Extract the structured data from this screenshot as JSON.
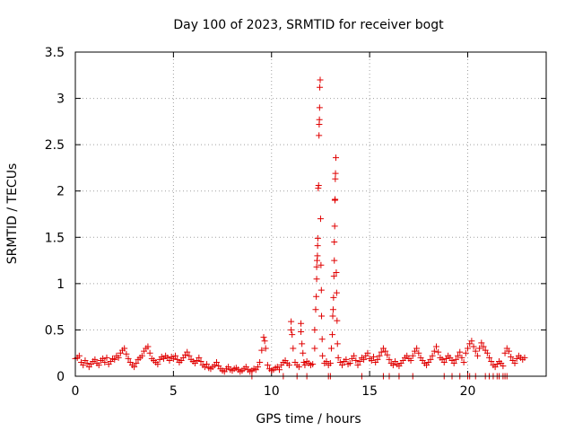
{
  "chart_data": {
    "type": "scatter",
    "title": "Day 100 of 2023, SRMTID for receiver bogt",
    "xlabel": "GPS time / hours",
    "ylabel": "SRMTID / TECUs",
    "xlim": [
      0,
      24
    ],
    "ylim": [
      0,
      3.5
    ],
    "xticks": [
      0,
      5,
      10,
      15,
      20
    ],
    "yticks": [
      0,
      0.5,
      1,
      1.5,
      2,
      2.5,
      3,
      3.5
    ],
    "xtick_labels": [
      "0",
      "5",
      "10",
      "15",
      "20"
    ],
    "ytick_labels": [
      "0",
      "0.5",
      "1",
      "1.5",
      "2",
      "2.5",
      "3",
      "3.5"
    ],
    "grid": true,
    "legend": "none",
    "marker": "+",
    "colors": {
      "marker": "#e00000",
      "grid": "#a0a0a0",
      "axis": "#000000"
    },
    "series": [
      {
        "name": "SRMTID",
        "points": [
          [
            0.0,
            0.19
          ],
          [
            0.1,
            0.2
          ],
          [
            0.2,
            0.22
          ],
          [
            0.3,
            0.15
          ],
          [
            0.4,
            0.12
          ],
          [
            0.5,
            0.17
          ],
          [
            0.6,
            0.14
          ],
          [
            0.7,
            0.1
          ],
          [
            0.8,
            0.13
          ],
          [
            0.9,
            0.16
          ],
          [
            1.0,
            0.18
          ],
          [
            1.1,
            0.14
          ],
          [
            1.2,
            0.12
          ],
          [
            1.3,
            0.17
          ],
          [
            1.4,
            0.19
          ],
          [
            1.5,
            0.15
          ],
          [
            1.6,
            0.2
          ],
          [
            1.7,
            0.13
          ],
          [
            1.8,
            0.16
          ],
          [
            1.9,
            0.19
          ],
          [
            2.0,
            0.18
          ],
          [
            2.1,
            0.22
          ],
          [
            2.2,
            0.2
          ],
          [
            2.3,
            0.25
          ],
          [
            2.4,
            0.28
          ],
          [
            2.5,
            0.3
          ],
          [
            2.6,
            0.24
          ],
          [
            2.7,
            0.19
          ],
          [
            2.8,
            0.15
          ],
          [
            2.9,
            0.12
          ],
          [
            3.0,
            0.1
          ],
          [
            3.1,
            0.14
          ],
          [
            3.2,
            0.18
          ],
          [
            3.3,
            0.2
          ],
          [
            3.4,
            0.22
          ],
          [
            3.5,
            0.27
          ],
          [
            3.6,
            0.3
          ],
          [
            3.7,
            0.32
          ],
          [
            3.8,
            0.25
          ],
          [
            3.9,
            0.19
          ],
          [
            4.0,
            0.17
          ],
          [
            4.1,
            0.15
          ],
          [
            4.2,
            0.13
          ],
          [
            4.3,
            0.18
          ],
          [
            4.4,
            0.21
          ],
          [
            4.5,
            0.19
          ],
          [
            4.6,
            0.22
          ],
          [
            4.7,
            0.2
          ],
          [
            4.8,
            0.17
          ],
          [
            4.9,
            0.21
          ],
          [
            5.0,
            0.19
          ],
          [
            5.1,
            0.22
          ],
          [
            5.2,
            0.18
          ],
          [
            5.3,
            0.15
          ],
          [
            5.4,
            0.17
          ],
          [
            5.5,
            0.2
          ],
          [
            5.6,
            0.23
          ],
          [
            5.7,
            0.26
          ],
          [
            5.8,
            0.22
          ],
          [
            5.9,
            0.18
          ],
          [
            6.0,
            0.16
          ],
          [
            6.1,
            0.14
          ],
          [
            6.2,
            0.17
          ],
          [
            6.3,
            0.2
          ],
          [
            6.4,
            0.16
          ],
          [
            6.5,
            0.12
          ],
          [
            6.6,
            0.1
          ],
          [
            6.7,
            0.13
          ],
          [
            6.8,
            0.09
          ],
          [
            6.9,
            0.08
          ],
          [
            7.0,
            0.1
          ],
          [
            7.1,
            0.12
          ],
          [
            7.2,
            0.15
          ],
          [
            7.3,
            0.11
          ],
          [
            7.4,
            0.08
          ],
          [
            7.5,
            0.06
          ],
          [
            7.6,
            0.05
          ],
          [
            7.7,
            0.08
          ],
          [
            7.8,
            0.1
          ],
          [
            7.9,
            0.07
          ],
          [
            8.0,
            0.06
          ],
          [
            8.1,
            0.08
          ],
          [
            8.2,
            0.09
          ],
          [
            8.3,
            0.07
          ],
          [
            8.4,
            0.05
          ],
          [
            8.5,
            0.06
          ],
          [
            8.6,
            0.08
          ],
          [
            8.7,
            0.1
          ],
          [
            8.8,
            0.07
          ],
          [
            8.9,
            0.05
          ],
          [
            9.0,
            0.06
          ],
          [
            9.1,
            0.08
          ],
          [
            9.2,
            0.07
          ],
          [
            9.3,
            0.1
          ],
          [
            9.4,
            0.15
          ],
          [
            9.5,
            0.28
          ],
          [
            9.6,
            0.42
          ],
          [
            9.65,
            0.38
          ],
          [
            9.7,
            0.3
          ],
          [
            9.8,
            0.12
          ],
          [
            9.9,
            0.08
          ],
          [
            10.0,
            0.06
          ],
          [
            10.1,
            0.07
          ],
          [
            10.2,
            0.09
          ],
          [
            10.3,
            0.1
          ],
          [
            10.4,
            0.07
          ],
          [
            10.5,
            0.12
          ],
          [
            10.6,
            0.15
          ],
          [
            10.7,
            0.17
          ],
          [
            10.8,
            0.14
          ],
          [
            10.9,
            0.12
          ],
          [
            11.0,
            0.5
          ],
          [
            11.0,
            0.59
          ],
          [
            11.05,
            0.45
          ],
          [
            11.1,
            0.3
          ],
          [
            11.2,
            0.15
          ],
          [
            11.3,
            0.12
          ],
          [
            11.4,
            0.1
          ],
          [
            11.5,
            0.57
          ],
          [
            11.5,
            0.48
          ],
          [
            11.55,
            0.35
          ],
          [
            11.6,
            0.25
          ],
          [
            11.65,
            0.15
          ],
          [
            11.7,
            0.12
          ],
          [
            11.8,
            0.16
          ],
          [
            11.9,
            0.14
          ],
          [
            12.0,
            0.12
          ],
          [
            12.1,
            0.13
          ],
          [
            12.2,
            0.3
          ],
          [
            12.2,
            0.5
          ],
          [
            12.25,
            0.72
          ],
          [
            12.28,
            0.86
          ],
          [
            12.3,
            1.05
          ],
          [
            12.3,
            1.18
          ],
          [
            12.32,
            1.25
          ],
          [
            12.34,
            1.3
          ],
          [
            12.35,
            1.41
          ],
          [
            12.36,
            1.49
          ],
          [
            12.38,
            2.03
          ],
          [
            12.4,
            2.06
          ],
          [
            12.42,
            2.6
          ],
          [
            12.43,
            2.72
          ],
          [
            12.44,
            2.77
          ],
          [
            12.45,
            2.9
          ],
          [
            12.46,
            3.12
          ],
          [
            12.48,
            3.2
          ],
          [
            12.5,
            1.7
          ],
          [
            12.52,
            1.2
          ],
          [
            12.54,
            0.93
          ],
          [
            12.55,
            0.65
          ],
          [
            12.58,
            0.4
          ],
          [
            12.6,
            0.22
          ],
          [
            12.7,
            0.14
          ],
          [
            12.8,
            0.16
          ],
          [
            12.9,
            0.12
          ],
          [
            13.0,
            0.14
          ],
          [
            13.05,
            0.3
          ],
          [
            13.1,
            0.45
          ],
          [
            13.12,
            0.65
          ],
          [
            13.14,
            0.72
          ],
          [
            13.16,
            0.85
          ],
          [
            13.18,
            1.08
          ],
          [
            13.2,
            1.25
          ],
          [
            13.2,
            1.45
          ],
          [
            13.22,
            1.62
          ],
          [
            13.23,
            1.9
          ],
          [
            13.24,
            1.91
          ],
          [
            13.25,
            2.13
          ],
          [
            13.26,
            2.19
          ],
          [
            13.28,
            2.36
          ],
          [
            13.3,
            1.12
          ],
          [
            13.32,
            0.9
          ],
          [
            13.34,
            0.6
          ],
          [
            13.36,
            0.35
          ],
          [
            13.4,
            0.2
          ],
          [
            13.5,
            0.15
          ],
          [
            13.6,
            0.12
          ],
          [
            13.7,
            0.16
          ],
          [
            13.8,
            0.18
          ],
          [
            13.9,
            0.13
          ],
          [
            14.0,
            0.14
          ],
          [
            14.1,
            0.19
          ],
          [
            14.2,
            0.22
          ],
          [
            14.3,
            0.17
          ],
          [
            14.4,
            0.12
          ],
          [
            14.5,
            0.16
          ],
          [
            14.6,
            0.2
          ],
          [
            14.7,
            0.18
          ],
          [
            14.8,
            0.22
          ],
          [
            14.9,
            0.25
          ],
          [
            15.0,
            0.19
          ],
          [
            15.1,
            0.17
          ],
          [
            15.2,
            0.21
          ],
          [
            15.3,
            0.15
          ],
          [
            15.4,
            0.18
          ],
          [
            15.5,
            0.22
          ],
          [
            15.6,
            0.26
          ],
          [
            15.7,
            0.3
          ],
          [
            15.8,
            0.27
          ],
          [
            15.9,
            0.23
          ],
          [
            16.0,
            0.18
          ],
          [
            16.1,
            0.14
          ],
          [
            16.2,
            0.12
          ],
          [
            16.3,
            0.16
          ],
          [
            16.4,
            0.13
          ],
          [
            16.5,
            0.11
          ],
          [
            16.6,
            0.14
          ],
          [
            16.7,
            0.17
          ],
          [
            16.8,
            0.2
          ],
          [
            16.9,
            0.22
          ],
          [
            17.0,
            0.19
          ],
          [
            17.1,
            0.17
          ],
          [
            17.2,
            0.22
          ],
          [
            17.3,
            0.27
          ],
          [
            17.4,
            0.3
          ],
          [
            17.5,
            0.25
          ],
          [
            17.6,
            0.2
          ],
          [
            17.7,
            0.17
          ],
          [
            17.8,
            0.14
          ],
          [
            17.9,
            0.12
          ],
          [
            18.0,
            0.15
          ],
          [
            18.1,
            0.18
          ],
          [
            18.2,
            0.22
          ],
          [
            18.3,
            0.27
          ],
          [
            18.4,
            0.32
          ],
          [
            18.5,
            0.26
          ],
          [
            18.6,
            0.2
          ],
          [
            18.7,
            0.18
          ],
          [
            18.8,
            0.15
          ],
          [
            18.9,
            0.19
          ],
          [
            19.0,
            0.22
          ],
          [
            19.1,
            0.2
          ],
          [
            19.2,
            0.17
          ],
          [
            19.3,
            0.14
          ],
          [
            19.4,
            0.18
          ],
          [
            19.5,
            0.22
          ],
          [
            19.6,
            0.26
          ],
          [
            19.7,
            0.2
          ],
          [
            19.8,
            0.15
          ],
          [
            19.9,
            0.25
          ],
          [
            20.0,
            0.3
          ],
          [
            20.1,
            0.35
          ],
          [
            20.2,
            0.38
          ],
          [
            20.3,
            0.32
          ],
          [
            20.4,
            0.27
          ],
          [
            20.5,
            0.22
          ],
          [
            20.6,
            0.3
          ],
          [
            20.7,
            0.36
          ],
          [
            20.8,
            0.32
          ],
          [
            20.9,
            0.28
          ],
          [
            21.0,
            0.25
          ],
          [
            21.1,
            0.2
          ],
          [
            21.2,
            0.16
          ],
          [
            21.3,
            0.12
          ],
          [
            21.4,
            0.1
          ],
          [
            21.5,
            0.13
          ],
          [
            21.6,
            0.16
          ],
          [
            21.7,
            0.14
          ],
          [
            21.8,
            0.11
          ],
          [
            21.9,
            0.25
          ],
          [
            22.0,
            0.3
          ],
          [
            22.1,
            0.27
          ],
          [
            22.2,
            0.21
          ],
          [
            22.3,
            0.17
          ],
          [
            22.4,
            0.14
          ],
          [
            22.5,
            0.19
          ],
          [
            22.6,
            0.22
          ],
          [
            22.7,
            0.2
          ],
          [
            22.8,
            0.18
          ],
          [
            22.9,
            0.2
          ],
          [
            9.0,
            0.0
          ],
          [
            10.6,
            0.0
          ],
          [
            11.3,
            0.0
          ],
          [
            11.8,
            0.0
          ],
          [
            12.9,
            0.0
          ],
          [
            13.0,
            0.0
          ],
          [
            14.6,
            0.0
          ],
          [
            15.7,
            0.0
          ],
          [
            16.0,
            0.0
          ],
          [
            16.5,
            0.0
          ],
          [
            17.2,
            0.0
          ],
          [
            18.8,
            0.0
          ],
          [
            19.2,
            0.0
          ],
          [
            19.6,
            0.0
          ],
          [
            20.0,
            0.0
          ],
          [
            20.1,
            0.0
          ],
          [
            20.4,
            0.0
          ],
          [
            20.9,
            0.0
          ],
          [
            21.1,
            0.0
          ],
          [
            21.3,
            0.0
          ],
          [
            21.5,
            0.0
          ],
          [
            21.6,
            0.0
          ],
          [
            21.8,
            0.0
          ],
          [
            21.9,
            0.0
          ],
          [
            22.0,
            0.0
          ]
        ]
      }
    ]
  }
}
